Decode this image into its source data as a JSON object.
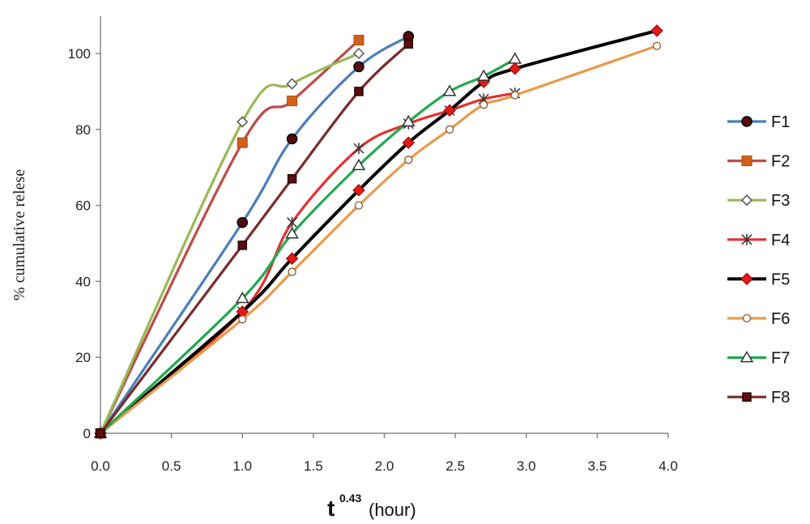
{
  "chart_data": {
    "type": "line",
    "title": "",
    "ylabel": "% cumulative  relese",
    "xlabel": {
      "main": "t",
      "sup": "0.43",
      "unit": "(hour)"
    },
    "xlim": [
      0,
      4
    ],
    "ylim": [
      0,
      110
    ],
    "xticks": [
      "0.0",
      "0.5",
      "1.0",
      "1.5",
      "2.0",
      "2.5",
      "3.0",
      "3.5",
      "4.0"
    ],
    "yticks": [
      "0",
      "20",
      "40",
      "60",
      "80",
      "100"
    ],
    "grid": false,
    "legend": "right",
    "series": [
      {
        "name": "F1",
        "color": "#4a7ebb",
        "marker": "circle-dark",
        "x": [
          0,
          1.0,
          1.35,
          1.82,
          2.17
        ],
        "y": [
          0,
          55.5,
          77.5,
          96.5,
          104.5
        ]
      },
      {
        "name": "F2",
        "color": "#be4b48",
        "marker": "square",
        "x": [
          0,
          1.0,
          1.35,
          1.82
        ],
        "y": [
          0,
          76.5,
          87.5,
          103.5
        ]
      },
      {
        "name": "F3",
        "color": "#98b954",
        "marker": "diamond",
        "x": [
          0,
          1.0,
          1.35,
          1.82
        ],
        "y": [
          0,
          82,
          92,
          100
        ]
      },
      {
        "name": "F4",
        "color": "#e53030",
        "marker": "star",
        "x": [
          0,
          1.0,
          1.35,
          1.82,
          2.17,
          2.46,
          2.7,
          2.92
        ],
        "y": [
          0,
          32,
          55.5,
          75,
          81.5,
          85,
          88,
          89.5
        ]
      },
      {
        "name": "F5",
        "color": "#000000",
        "marker": "diamond-red",
        "x": [
          0,
          1.0,
          1.35,
          1.82,
          2.17,
          2.46,
          2.7,
          2.92,
          3.92
        ],
        "y": [
          0,
          32,
          46,
          64,
          76.5,
          85,
          92.5,
          96,
          106
        ]
      },
      {
        "name": "F6",
        "color": "#e89a4c",
        "marker": "circle-open",
        "x": [
          0,
          1.0,
          1.35,
          1.82,
          2.17,
          2.46,
          2.7,
          2.92,
          3.92
        ],
        "y": [
          0,
          30,
          42.5,
          60,
          72,
          80,
          86.5,
          89,
          102
        ]
      },
      {
        "name": "F7",
        "color": "#22a84e",
        "marker": "triangle",
        "x": [
          0,
          1.0,
          1.35,
          1.82,
          2.17,
          2.46,
          2.7,
          2.92
        ],
        "y": [
          0,
          35.5,
          52.5,
          70.5,
          82,
          90,
          94,
          98.5
        ]
      },
      {
        "name": "F8",
        "color": "#7b2a2a",
        "marker": "square-dark",
        "x": [
          0,
          1.0,
          1.35,
          1.82,
          2.17
        ],
        "y": [
          0,
          49.5,
          67,
          90,
          102.5
        ]
      }
    ]
  }
}
